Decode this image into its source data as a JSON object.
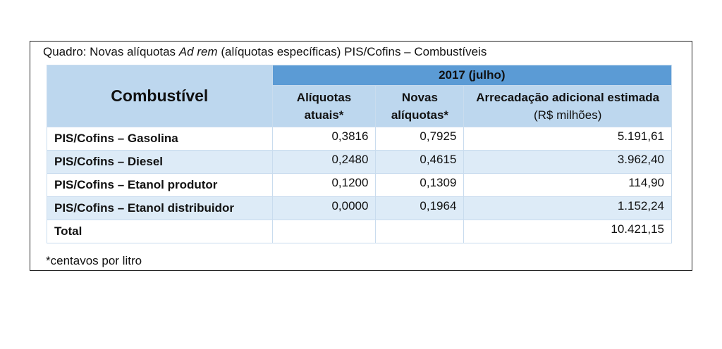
{
  "header": {
    "title": {
      "prefix": "Quadro: Novas alíquotas",
      "italic": "Ad rem",
      "suffix": "(alíquotas específicas) PIS/Cofins – Combustíveis"
    }
  },
  "table": {
    "columns": {
      "name": "Combustível",
      "group": "2017 (julho)",
      "current": "Alíquotas atuais*",
      "new": "Novas alíquotas*",
      "revenue": "Arrecadação adicional estimada",
      "revenue_unit": "(R$ milhões)"
    },
    "rows": [
      {
        "name": "PIS/Cofins – Gasolina",
        "current": "0,3816",
        "new": "0,7925",
        "revenue": "5.191,61"
      },
      {
        "name": "PIS/Cofins – Diesel",
        "current": "0,2480",
        "new": "0,4615",
        "revenue": "3.962,40"
      },
      {
        "name": "PIS/Cofins – Etanol produtor",
        "current": "0,1200",
        "new": "0,1309",
        "revenue": "114,90"
      },
      {
        "name": "PIS/Cofins – Etanol distribuidor",
        "current": "0,0000",
        "new": "0,1964",
        "revenue": "1.152,24"
      }
    ],
    "total": {
      "name": "Total",
      "revenue": "10.421,15"
    }
  },
  "footnote": "*centavos por litro"
}
